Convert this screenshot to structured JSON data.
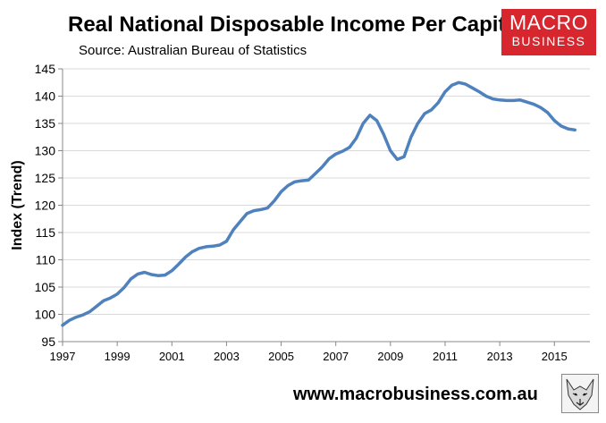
{
  "header": {
    "title": "Real National Disposable Income Per Capita",
    "source": "Source: Australian Bureau of Statistics"
  },
  "logo": {
    "line1": "MACRO",
    "line2": "BUSINESS",
    "color": "#d7262d"
  },
  "footer": {
    "url": "www.macrobusiness.com.au"
  },
  "icons": {
    "mascot": "fox-sketch-icon"
  },
  "chart_data": {
    "type": "line",
    "title": "Real National Disposable Income Per Capita",
    "xlabel": "",
    "ylabel": "Index (Trend)",
    "xlim": [
      1997,
      2016.3
    ],
    "ylim": [
      95,
      145
    ],
    "yticks": [
      95,
      100,
      105,
      110,
      115,
      120,
      125,
      130,
      135,
      140,
      145
    ],
    "xticks": [
      1997,
      1999,
      2001,
      2003,
      2005,
      2007,
      2009,
      2011,
      2013,
      2015
    ],
    "grid": true,
    "legend": "none",
    "series": [
      {
        "name": "Real National Disposable Income Per Capita",
        "color": "#4f81bd",
        "x": [
          1997.0,
          1997.25,
          1997.5,
          1997.75,
          1998.0,
          1998.25,
          1998.5,
          1998.75,
          1999.0,
          1999.25,
          1999.5,
          1999.75,
          2000.0,
          2000.25,
          2000.5,
          2000.75,
          2001.0,
          2001.25,
          2001.5,
          2001.75,
          2002.0,
          2002.25,
          2002.5,
          2002.75,
          2003.0,
          2003.25,
          2003.5,
          2003.75,
          2004.0,
          2004.25,
          2004.5,
          2004.75,
          2005.0,
          2005.25,
          2005.5,
          2005.75,
          2006.0,
          2006.25,
          2006.5,
          2006.75,
          2007.0,
          2007.25,
          2007.5,
          2007.75,
          2008.0,
          2008.25,
          2008.5,
          2008.75,
          2009.0,
          2009.25,
          2009.5,
          2009.75,
          2010.0,
          2010.25,
          2010.5,
          2010.75,
          2011.0,
          2011.25,
          2011.5,
          2011.75,
          2012.0,
          2012.25,
          2012.5,
          2012.75,
          2013.0,
          2013.25,
          2013.5,
          2013.75,
          2014.0,
          2014.25,
          2014.5,
          2014.75,
          2015.0,
          2015.25,
          2015.5,
          2015.75
        ],
        "values": [
          98.0,
          98.9,
          99.5,
          99.9,
          100.5,
          101.5,
          102.5,
          103.0,
          103.7,
          104.9,
          106.5,
          107.4,
          107.7,
          107.3,
          107.1,
          107.2,
          108.0,
          109.2,
          110.5,
          111.5,
          112.1,
          112.4,
          112.5,
          112.7,
          113.4,
          115.5,
          117.0,
          118.5,
          119.0,
          119.2,
          119.5,
          120.8,
          122.5,
          123.6,
          124.3,
          124.5,
          124.6,
          125.8,
          127.0,
          128.5,
          129.4,
          129.9,
          130.6,
          132.3,
          135.0,
          136.5,
          135.5,
          133.0,
          130.0,
          128.4,
          128.9,
          132.5,
          135.0,
          136.8,
          137.5,
          138.8,
          140.8,
          142.0,
          142.5,
          142.2,
          141.5,
          140.8,
          140.0,
          139.5,
          139.3,
          139.2,
          139.2,
          139.3,
          138.9,
          138.5,
          137.9,
          137.0,
          135.5,
          134.5,
          134.0,
          133.8
        ]
      }
    ]
  }
}
